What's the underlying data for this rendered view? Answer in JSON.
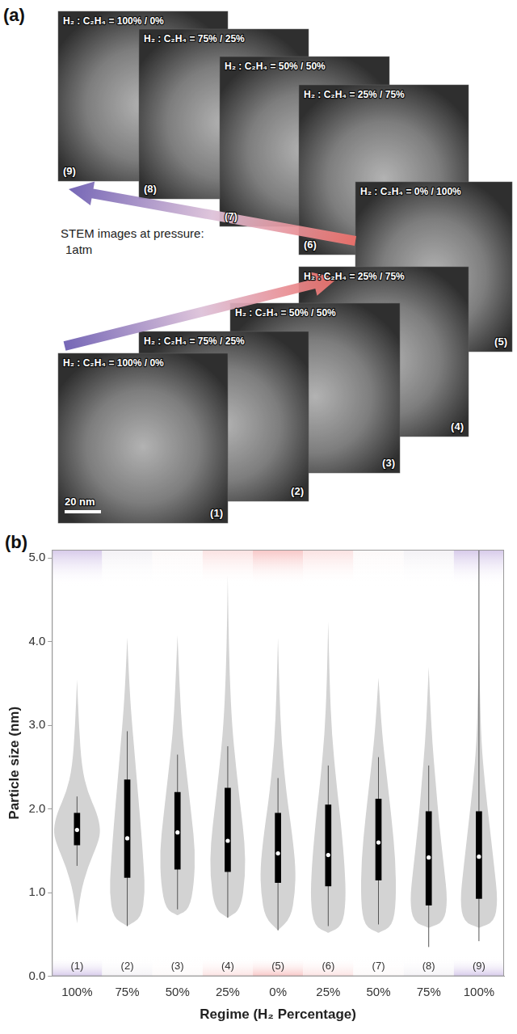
{
  "chart_data": {
    "type": "violin",
    "panel_label": "(b)",
    "x_label": "Regime (H₂ Percentage)",
    "y_label": "Particle size (nm)",
    "categories": [
      "100%",
      "75%",
      "50%",
      "25%",
      "0%",
      "25%",
      "50%",
      "75%",
      "100%"
    ],
    "index_labels": [
      "(1)",
      "(2)",
      "(3)",
      "(4)",
      "(5)",
      "(6)",
      "(7)",
      "(8)",
      "(9)"
    ],
    "ylim": [
      0,
      5.1
    ],
    "yticks": [
      {
        "value": 0,
        "label": "0.0"
      },
      {
        "value": 1,
        "label": "1.0"
      },
      {
        "value": 2,
        "label": "2.0"
      },
      {
        "value": 3,
        "label": "3.0"
      },
      {
        "value": 4,
        "label": "4.0"
      },
      {
        "value": 5,
        "label": "5.0"
      }
    ],
    "grid": false,
    "color": "#d3d3d3",
    "colors": [
      "#d6c9ea",
      "#f3f1f5",
      "#fcf8f8",
      "#fbe1e1",
      "#f8c6c6",
      "#fbe1e1",
      "#fcf8f8",
      "#f3f1f5",
      "#d6c9ea"
    ],
    "medians": [
      1.75,
      1.65,
      1.72,
      1.62,
      1.47,
      1.45,
      1.6,
      1.42,
      1.43
    ],
    "q1": [
      1.57,
      1.18,
      1.28,
      1.25,
      1.12,
      1.08,
      1.15,
      0.85,
      0.93
    ],
    "q3": [
      1.95,
      2.35,
      2.2,
      2.25,
      1.95,
      2.05,
      2.12,
      1.97,
      1.97
    ],
    "whisker_low": [
      1.32,
      0.6,
      0.8,
      0.7,
      0.55,
      0.6,
      0.62,
      0.35,
      0.42
    ],
    "whisker_high": [
      2.15,
      2.93,
      2.65,
      2.75,
      2.37,
      2.52,
      2.62,
      2.52,
      5.1
    ],
    "violins": [
      [
        [
          0.63,
          0
        ],
        [
          1.0,
          0.15
        ],
        [
          1.3,
          0.45
        ],
        [
          1.6,
          0.9
        ],
        [
          1.75,
          1.0
        ],
        [
          1.95,
          0.85
        ],
        [
          2.2,
          0.45
        ],
        [
          2.5,
          0.2
        ],
        [
          3.0,
          0.08
        ],
        [
          3.55,
          0
        ]
      ],
      [
        [
          0.6,
          0
        ],
        [
          0.7,
          0.6
        ],
        [
          1.0,
          0.75
        ],
        [
          1.3,
          0.7
        ],
        [
          1.7,
          0.6
        ],
        [
          2.2,
          0.45
        ],
        [
          2.7,
          0.3
        ],
        [
          3.2,
          0.15
        ],
        [
          3.6,
          0.07
        ],
        [
          4.05,
          0
        ]
      ],
      [
        [
          0.73,
          0
        ],
        [
          0.8,
          0.5
        ],
        [
          1.1,
          0.7
        ],
        [
          1.5,
          0.75
        ],
        [
          1.9,
          0.6
        ],
        [
          2.4,
          0.4
        ],
        [
          2.9,
          0.2
        ],
        [
          3.4,
          0.1
        ],
        [
          4.08,
          0
        ]
      ],
      [
        [
          0.7,
          0
        ],
        [
          0.8,
          0.55
        ],
        [
          1.2,
          0.75
        ],
        [
          1.6,
          0.72
        ],
        [
          2.0,
          0.55
        ],
        [
          2.5,
          0.35
        ],
        [
          3.0,
          0.18
        ],
        [
          3.6,
          0.08
        ],
        [
          4.2,
          0.03
        ],
        [
          4.8,
          0
        ]
      ],
      [
        [
          0.55,
          0
        ],
        [
          0.7,
          0.55
        ],
        [
          1.0,
          0.72
        ],
        [
          1.3,
          0.75
        ],
        [
          1.7,
          0.6
        ],
        [
          2.2,
          0.35
        ],
        [
          2.8,
          0.15
        ],
        [
          3.4,
          0.06
        ],
        [
          4.05,
          0
        ]
      ],
      [
        [
          0.52,
          0
        ],
        [
          0.6,
          0.6
        ],
        [
          0.9,
          0.75
        ],
        [
          1.3,
          0.7
        ],
        [
          1.8,
          0.55
        ],
        [
          2.3,
          0.35
        ],
        [
          2.9,
          0.15
        ],
        [
          3.5,
          0.06
        ],
        [
          4.25,
          0
        ]
      ],
      [
        [
          0.52,
          0
        ],
        [
          0.6,
          0.6
        ],
        [
          0.9,
          0.75
        ],
        [
          1.4,
          0.72
        ],
        [
          1.9,
          0.55
        ],
        [
          2.4,
          0.35
        ],
        [
          2.9,
          0.15
        ],
        [
          3.57,
          0
        ]
      ],
      [
        [
          0.58,
          0
        ],
        [
          0.65,
          0.65
        ],
        [
          0.9,
          0.8
        ],
        [
          1.3,
          0.65
        ],
        [
          1.8,
          0.45
        ],
        [
          2.3,
          0.3
        ],
        [
          2.8,
          0.15
        ],
        [
          3.3,
          0.06
        ],
        [
          3.7,
          0
        ]
      ],
      [
        [
          0.58,
          0
        ],
        [
          0.65,
          0.65
        ],
        [
          0.9,
          0.8
        ],
        [
          1.3,
          0.65
        ],
        [
          1.8,
          0.45
        ],
        [
          2.3,
          0.25
        ],
        [
          2.8,
          0.1
        ],
        [
          3.4,
          0.04
        ],
        [
          4.0,
          0
        ]
      ]
    ]
  },
  "panel_a": {
    "panel_label": "(a)",
    "note_lines": [
      "STEM images at pressure:",
      "1atm"
    ],
    "scale_bar": "20 nm",
    "images": [
      {
        "label": "(9)",
        "caption": "H₂ : C₂H₄ = 100% / 0%"
      },
      {
        "label": "(8)",
        "caption": "H₂ : C₂H₄ = 75% / 25%"
      },
      {
        "label": "(7)",
        "caption": "H₂ : C₂H₄ = 50% / 50%"
      },
      {
        "label": "(6)",
        "caption": "H₂ : C₂H₄ = 25% / 75%"
      },
      {
        "label": "(5)",
        "caption": "H₂ : C₂H₄ = 0% / 100%"
      },
      {
        "label": "(4)",
        "caption": "H₂ : C₂H₄ = 25% / 75%"
      },
      {
        "label": "(3)",
        "caption": "H₂ : C₂H₄ = 50% / 50%"
      },
      {
        "label": "(2)",
        "caption": "H₂ : C₂H₄ = 75% / 25%"
      },
      {
        "label": "(1)",
        "caption": "H₂ : C₂H₄ = 100% / 0%"
      }
    ]
  }
}
